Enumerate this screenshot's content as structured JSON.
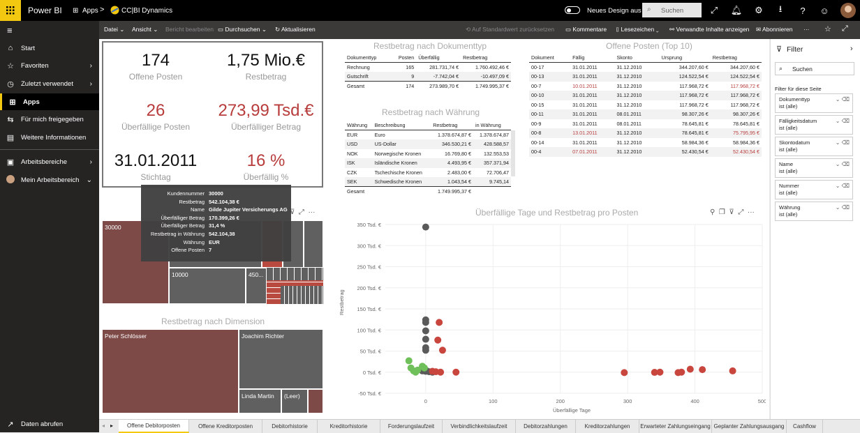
{
  "topbar": {
    "app_name": "Power BI",
    "apps_label": "Apps",
    "report_name": "CC|BI Dynamics",
    "new_design_label": "Neues Design aus",
    "search_placeholder": "Suchen"
  },
  "leftnav": {
    "items": [
      {
        "label": "Start",
        "icon": "home-icon"
      },
      {
        "label": "Favoriten",
        "icon": "star-icon"
      },
      {
        "label": "Zuletzt verwendet",
        "icon": "clock-icon"
      },
      {
        "label": "Apps",
        "icon": "apps-icon"
      },
      {
        "label": "Für mich freigegeben",
        "icon": "share-icon"
      },
      {
        "label": "Weitere Informationen",
        "icon": "book-icon"
      },
      {
        "label": "Arbeitsbereiche",
        "icon": "workspace-icon"
      },
      {
        "label": "Mein Arbeitsbereich",
        "icon": "avatar"
      }
    ],
    "get_data": "Daten abrufen"
  },
  "actionbar": {
    "file": "Datei",
    "view": "Ansicht",
    "edit_report": "Bericht bearbeiten",
    "browse": "Durchsuchen",
    "refresh": "Aktualisieren",
    "reset_default": "Auf Standardwert zurücksetzen",
    "comments": "Kommentare",
    "bookmarks": "Lesezeichen",
    "related": "Verwandte Inhalte anzeigen",
    "subscribe": "Abonnieren",
    "more": "···"
  },
  "kpis": [
    {
      "value": "174",
      "label": "Offene Posten",
      "color": "#111111"
    },
    {
      "value": "1,75 Mio.€",
      "label": "Restbetrag",
      "color": "#111111"
    },
    {
      "value": "26",
      "label": "Überfällige Posten",
      "color": "#b83c3c"
    },
    {
      "value": "273,99 Tsd.€",
      "label": "Überfälliger Betrag",
      "color": "#b83c3c"
    },
    {
      "value": "31.01.2011",
      "label": "Stichtag",
      "color": "#111111"
    },
    {
      "value": "16 %",
      "label": "Überfällig %",
      "color": "#b83c3c"
    }
  ],
  "doctype_table": {
    "title": "Restbetrag nach Dokumenttyp",
    "headers": [
      "Dokumenttyp",
      "Posten",
      "Überfällig",
      "Restbetrag"
    ],
    "rows": [
      [
        "Rechnung",
        "165",
        "281.731,74 €",
        "1.760.492,46 €"
      ],
      [
        "Gutschrift",
        "9",
        "-7.742,04 €",
        "-10.497,09 €"
      ]
    ],
    "total": [
      "Gesamt",
      "174",
      "273.989,70 €",
      "1.749.995,37 €"
    ]
  },
  "currency_table": {
    "title": "Restbetrag nach Währung",
    "headers": [
      "Währung",
      "Beschreibung",
      "Restbetrag",
      "in Währung"
    ],
    "rows": [
      [
        "EUR",
        "Euro",
        "1.378.674,87 €",
        "1.378.674,87"
      ],
      [
        "USD",
        "US-Dollar",
        "346.530,21 €",
        "428.588,57"
      ],
      [
        "NOK",
        "Norwegische Kronen",
        "16.769,80 €",
        "132.553,53"
      ],
      [
        "ISK",
        "Isländische Kronen",
        "4.493,95 €",
        "357.371,94"
      ],
      [
        "CZK",
        "Tschechische Kronen",
        "2.483,00 €",
        "72.706,47"
      ],
      [
        "SEK",
        "Schwedische Kronen",
        "1.043,54 €",
        "9.745,14"
      ]
    ],
    "total": [
      "Gesamt",
      "",
      "1.749.995,37 €",
      ""
    ]
  },
  "top10_table": {
    "title": "Offene Posten (Top 10)",
    "headers": [
      "Dokument",
      "Fällig",
      "Skonto",
      "Ursprung",
      "Restbetrag"
    ],
    "rows": [
      {
        "cells": [
          "00-17",
          "31.01.2011",
          "31.12.2010",
          "344.207,60 €",
          "344.207,60 €"
        ],
        "overdue": false
      },
      {
        "cells": [
          "00-13",
          "31.01.2011",
          "31.12.2010",
          "124.522,54 €",
          "124.522,54 €"
        ],
        "overdue": false
      },
      {
        "cells": [
          "00-7",
          "10.01.2011",
          "31.12.2010",
          "117.968,72 €",
          "117.968,72 €"
        ],
        "overdue": true
      },
      {
        "cells": [
          "00-10",
          "31.01.2011",
          "31.12.2010",
          "117.968,72 €",
          "117.968,72 €"
        ],
        "overdue": false
      },
      {
        "cells": [
          "00-15",
          "31.01.2011",
          "31.12.2010",
          "117.968,72 €",
          "117.968,72 €"
        ],
        "overdue": false
      },
      {
        "cells": [
          "00-11",
          "31.01.2011",
          "08.01.2011",
          "98.307,26 €",
          "98.307,26 €"
        ],
        "overdue": false
      },
      {
        "cells": [
          "00-9",
          "31.01.2011",
          "08.01.2011",
          "78.645,81 €",
          "78.645,81 €"
        ],
        "overdue": false
      },
      {
        "cells": [
          "00-8",
          "13.01.2011",
          "31.12.2010",
          "78.645,81 €",
          "75.795,95 €"
        ],
        "overdue": true
      },
      {
        "cells": [
          "00-14",
          "31.01.2011",
          "31.12.2010",
          "58.984,36 €",
          "58.984,36 €"
        ],
        "overdue": false
      },
      {
        "cells": [
          "00-4",
          "07.01.2011",
          "31.12.2010",
          "52.430,54 €",
          "52.430,54 €"
        ],
        "overdue": true
      }
    ]
  },
  "treemap_top": {
    "labels": [
      "30000",
      "10000",
      "450..."
    ]
  },
  "tooltip": {
    "rows": [
      [
        "Kundennummer",
        "30000"
      ],
      [
        "Restbetrag",
        "542.104,38 €"
      ],
      [
        "Name",
        "Gilde Jupiter Versicherungs AG"
      ],
      [
        "Überfälliger Betrag",
        "170.399,26 €"
      ],
      [
        "Überfälliger Betrag",
        "31,4 %"
      ],
      [
        "Restbetrag in Währung",
        "542.104,38"
      ],
      [
        "Währung",
        "EUR"
      ],
      [
        "Offene Posten",
        "7"
      ]
    ]
  },
  "treemap_dim": {
    "title": "Restbetrag nach Dimension",
    "labels": [
      "Peter Schlösser",
      "Joachim Richter",
      "Linda Martin",
      "(Leer)"
    ]
  },
  "chart_data": {
    "type": "scatter",
    "title": "Überfällige Tage und Restbetrag pro Posten",
    "xlabel": "Überfällige Tage",
    "ylabel": "Restbetrag",
    "xlim": [
      -60,
      500
    ],
    "ylim": [
      -50000,
      350000
    ],
    "x_ticks": [
      "0",
      "100",
      "200",
      "300",
      "400",
      "500"
    ],
    "y_ticks": [
      "350 Tsd. €",
      "300 Tsd. €",
      "250 Tsd. €",
      "200 Tsd. €",
      "150 Tsd. €",
      "100 Tsd. €",
      "50 Tsd. €",
      "0 Tsd. €",
      "-50 Tsd. €"
    ],
    "series": [
      {
        "color": "#5a5a5a",
        "points": [
          [
            0,
            344000
          ],
          [
            0,
            124000
          ],
          [
            0,
            118000
          ],
          [
            0,
            98000
          ],
          [
            0,
            78000
          ],
          [
            0,
            58000
          ],
          [
            0,
            52000
          ],
          [
            0,
            5000
          ],
          [
            0,
            2000
          ],
          [
            5,
            1000
          ],
          [
            10,
            0
          ],
          [
            -5,
            3000
          ]
        ]
      },
      {
        "color": "#c8463d",
        "points": [
          [
            20,
            118000
          ],
          [
            18,
            76000
          ],
          [
            25,
            52000
          ],
          [
            10,
            2000
          ],
          [
            15,
            1000
          ],
          [
            22,
            0
          ],
          [
            45,
            0
          ],
          [
            295,
            -1000
          ],
          [
            340,
            -500
          ],
          [
            348,
            0
          ],
          [
            375,
            -1000
          ],
          [
            380,
            0
          ],
          [
            393,
            7000
          ],
          [
            411,
            6000
          ],
          [
            456,
            3000
          ]
        ]
      },
      {
        "color": "#6fbf5a",
        "points": [
          [
            -25,
            27000
          ],
          [
            -22,
            10000
          ],
          [
            -18,
            3000
          ],
          [
            -15,
            0
          ],
          [
            -12,
            5000
          ],
          [
            -5,
            14000
          ],
          [
            -2,
            10000
          ]
        ]
      }
    ]
  },
  "filter": {
    "title": "Filter",
    "search_placeholder": "Suchen",
    "section": "Filter für diese Seite",
    "cards": [
      {
        "name": "Dokumenttyp",
        "value": "ist (alle)"
      },
      {
        "name": "Fälligkeitsdatum",
        "value": "ist (alle)"
      },
      {
        "name": "Skontodatum",
        "value": "ist (alle)"
      },
      {
        "name": "Name",
        "value": "ist (alle)"
      },
      {
        "name": "Nummer",
        "value": "ist (alle)"
      },
      {
        "name": "Währung",
        "value": "ist (alle)"
      }
    ]
  },
  "tabs": [
    "Offene Debitorposten",
    "Offene Kreditorposten",
    "Debitorhistorie",
    "Kreditorhistorie",
    "Forderungslaufzeit",
    "Verbindlichkeitslaufzeit",
    "Debitorzahlungen",
    "Kreditorzahlungen",
    "Erwarteter Zahlungseingang",
    "Geplanter Zahlungsausgang",
    "Cashflow"
  ]
}
